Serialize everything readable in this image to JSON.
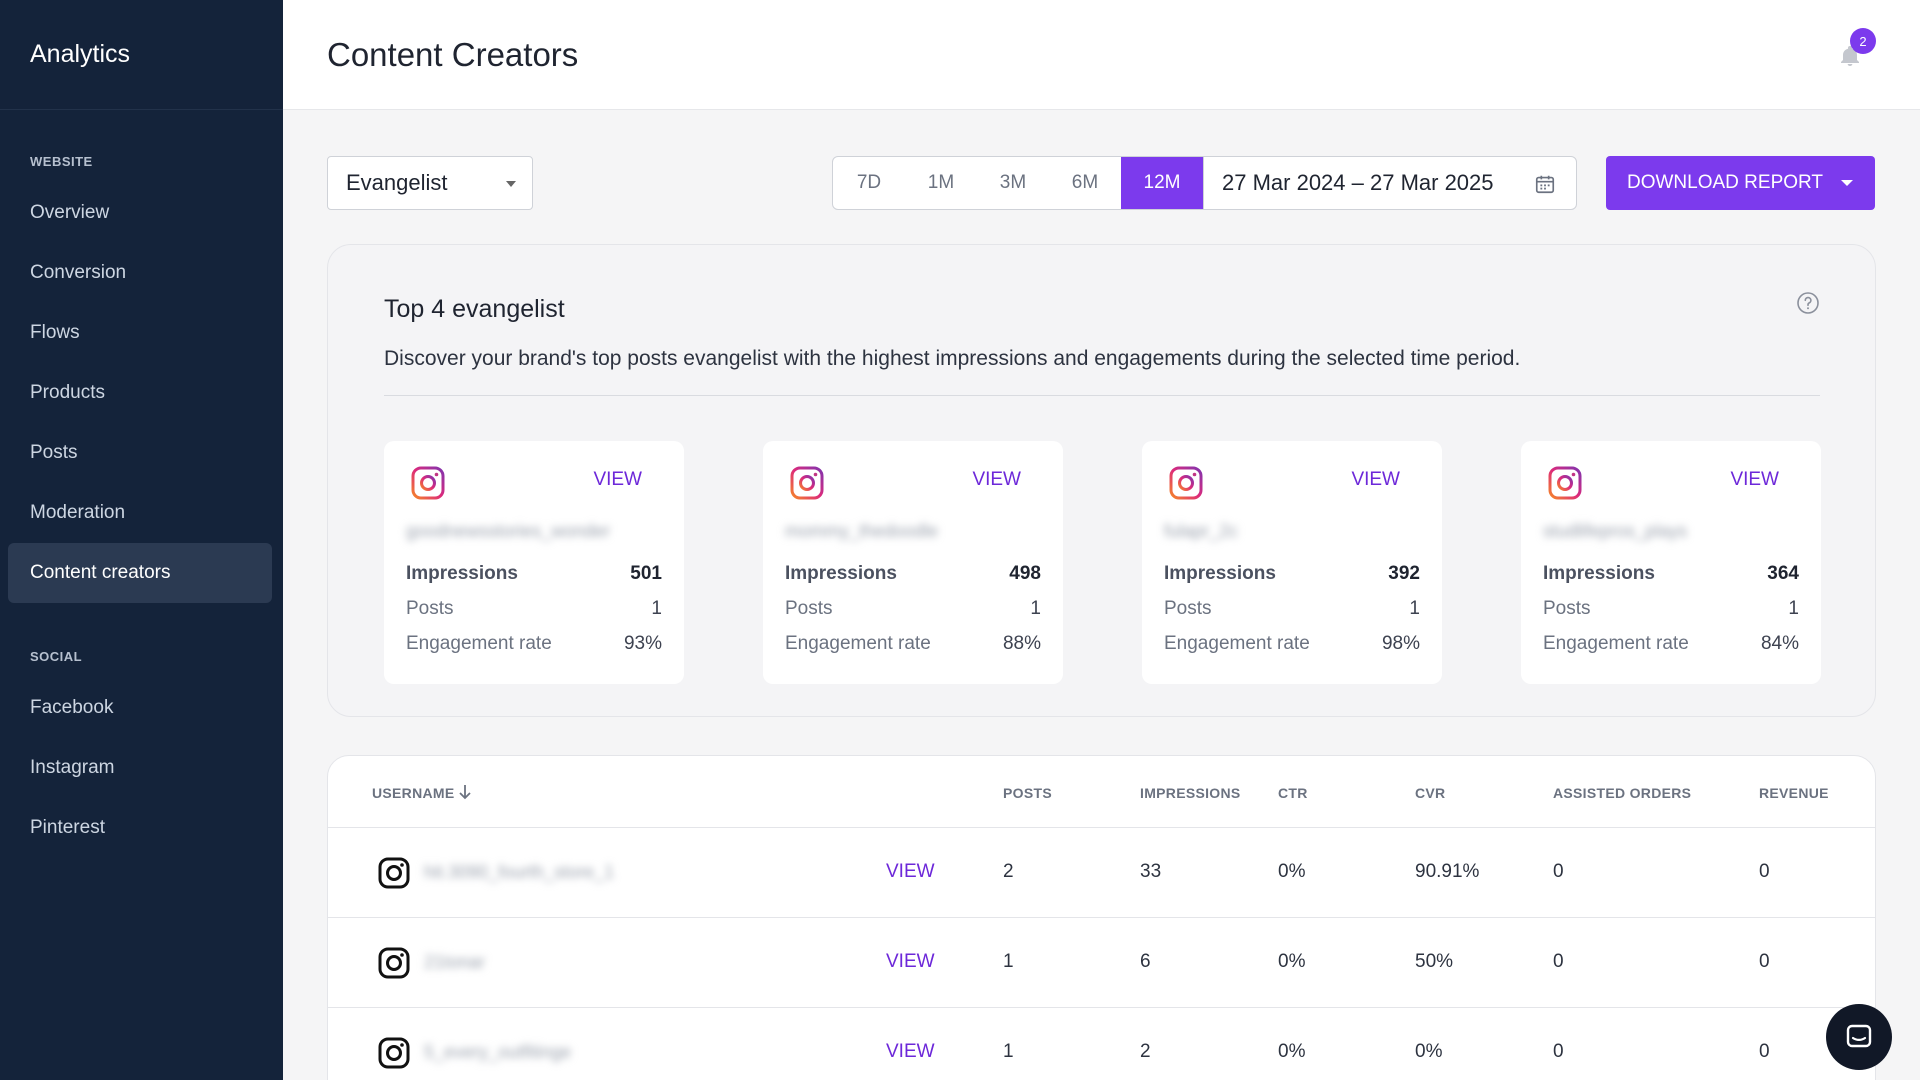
{
  "app": {
    "brand": "Analytics"
  },
  "sidebar": {
    "website_label": "WEBSITE",
    "website_items": [
      {
        "label": "Overview"
      },
      {
        "label": "Conversion"
      },
      {
        "label": "Flows"
      },
      {
        "label": "Products"
      },
      {
        "label": "Posts"
      },
      {
        "label": "Moderation"
      },
      {
        "label": "Content creators",
        "active": true
      }
    ],
    "social_label": "SOCIAL",
    "social_items": [
      {
        "label": "Facebook"
      },
      {
        "label": "Instagram"
      },
      {
        "label": "Pinterest"
      }
    ]
  },
  "header": {
    "title": "Content Creators",
    "notification_count": "2"
  },
  "toolbar": {
    "segment_select": "Evangelist",
    "ranges": [
      "7D",
      "1M",
      "3M",
      "6M",
      "12M"
    ],
    "active_range": "12M",
    "date_range": "27 Mar 2024 – 27 Mar 2025",
    "download_label": "DOWNLOAD REPORT"
  },
  "top_panel": {
    "title": "Top 4 evangelist",
    "description": "Discover your brand's top posts evangelist with the highest impressions and engagements during the selected time period.",
    "cards": [
      {
        "view": "VIEW",
        "username": "goodnewsstories_wonder",
        "impressions_label": "Impressions",
        "impressions": "501",
        "posts_label": "Posts",
        "posts": "1",
        "engagement_label": "Engagement rate",
        "engagement": "93%"
      },
      {
        "view": "VIEW",
        "username": "mommy_thedoodle",
        "impressions_label": "Impressions",
        "impressions": "498",
        "posts_label": "Posts",
        "posts": "1",
        "engagement_label": "Engagement rate",
        "engagement": "88%"
      },
      {
        "view": "VIEW",
        "username": "fulapr_2c",
        "impressions_label": "Impressions",
        "impressions": "392",
        "posts_label": "Posts",
        "posts": "1",
        "engagement_label": "Engagement rate",
        "engagement": "98%"
      },
      {
        "view": "VIEW",
        "username": "studlifepros_plays",
        "impressions_label": "Impressions",
        "impressions": "364",
        "posts_label": "Posts",
        "posts": "1",
        "engagement_label": "Engagement rate",
        "engagement": "84%"
      }
    ]
  },
  "table": {
    "headers": {
      "username": "USERNAME",
      "posts": "POSTS",
      "impressions": "IMPRESSIONS",
      "ctr": "CTR",
      "cvr": "CVR",
      "assisted_orders": "ASSISTED ORDERS",
      "revenue": "REVENUE"
    },
    "rows": [
      {
        "username": "hit.3090_fourth_store_1",
        "view": "VIEW",
        "posts": "2",
        "impressions": "33",
        "ctr": "0%",
        "cvr": "90.91%",
        "assisted_orders": "0",
        "revenue": "0"
      },
      {
        "username": "21tonar",
        "view": "VIEW",
        "posts": "1",
        "impressions": "6",
        "ctr": "0%",
        "cvr": "50%",
        "assisted_orders": "0",
        "revenue": "0"
      },
      {
        "username": "5_every_outfitinge",
        "view": "VIEW",
        "posts": "1",
        "impressions": "2",
        "ctr": "0%",
        "cvr": "0%",
        "assisted_orders": "0",
        "revenue": "0"
      }
    ]
  }
}
